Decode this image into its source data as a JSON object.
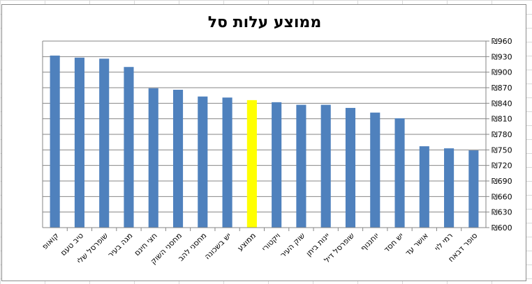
{
  "chart_data": {
    "type": "bar",
    "title": "ממוצע עלות סל",
    "currency_symbol": "₪",
    "categories": [
      "קואופ",
      "טיב טעם",
      "שופרסל שלי",
      "מגה בעיר",
      "חצי חינם",
      "מחסני השוק",
      "מחסני להב",
      "יש בשכונה",
      "ממוצע",
      "ויקטורי",
      "שוק העיר",
      "יינות ביתן",
      "שופרסל דיל",
      "יוחננוף",
      "יש חסד",
      "אושר עד",
      "רמי לוי",
      "סופר דבאח"
    ],
    "values": [
      932,
      928,
      926,
      910,
      869,
      866,
      853,
      851,
      846,
      842,
      837,
      837,
      831,
      822,
      811,
      757,
      753,
      749
    ],
    "highlight_index": 8,
    "ylim": [
      600,
      960
    ],
    "ytick_step": 30,
    "ytick_labels": [
      "₪600",
      "₪630",
      "₪660",
      "₪690",
      "₪720",
      "₪750",
      "₪780",
      "₪810",
      "₪840",
      "₪870",
      "₪900",
      "₪930",
      "₪960"
    ],
    "y_axis_side": "right",
    "grid": true,
    "legend": "none",
    "xlabel": "",
    "ylabel": "",
    "colors": {
      "bar": "#4f81bd",
      "highlight": "#ffff00",
      "grid": "#868686",
      "axis": "#868686"
    }
  }
}
